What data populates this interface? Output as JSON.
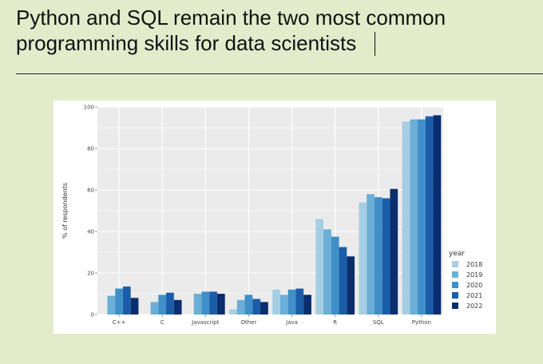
{
  "slide": {
    "title_line1": "Python and SQL remain the two most common",
    "title_line2": "programming skills for data scientists"
  },
  "chart_data": {
    "type": "bar",
    "title": "",
    "xlabel": "",
    "ylabel": "% of respondents",
    "ylim": [
      0,
      100
    ],
    "yticks": [
      0,
      20,
      40,
      60,
      80,
      100
    ],
    "grid": true,
    "legend_title": "year",
    "legend_position": "right",
    "categories": [
      "C++",
      "C",
      "Javascript",
      "Other",
      "Java",
      "R",
      "SQL",
      "Python"
    ],
    "series": [
      {
        "name": "2018",
        "color": "#a6cee3",
        "values": [
          0,
          0,
          0,
          2.5,
          12,
          46,
          54,
          93
        ]
      },
      {
        "name": "2019",
        "color": "#6baed6",
        "values": [
          9,
          6,
          10,
          7,
          9.5,
          41,
          58,
          94
        ]
      },
      {
        "name": "2020",
        "color": "#3f8fc9",
        "values": [
          12.5,
          9.5,
          11,
          9.5,
          12,
          37.5,
          56.5,
          94
        ]
      },
      {
        "name": "2021",
        "color": "#1b5da8",
        "values": [
          13.5,
          10.5,
          11,
          7.5,
          12.5,
          32.5,
          56,
          95.5
        ]
      },
      {
        "name": "2022",
        "color": "#0a2d6e",
        "values": [
          8,
          7,
          10,
          6,
          9.5,
          28,
          60.5,
          96
        ]
      }
    ]
  }
}
